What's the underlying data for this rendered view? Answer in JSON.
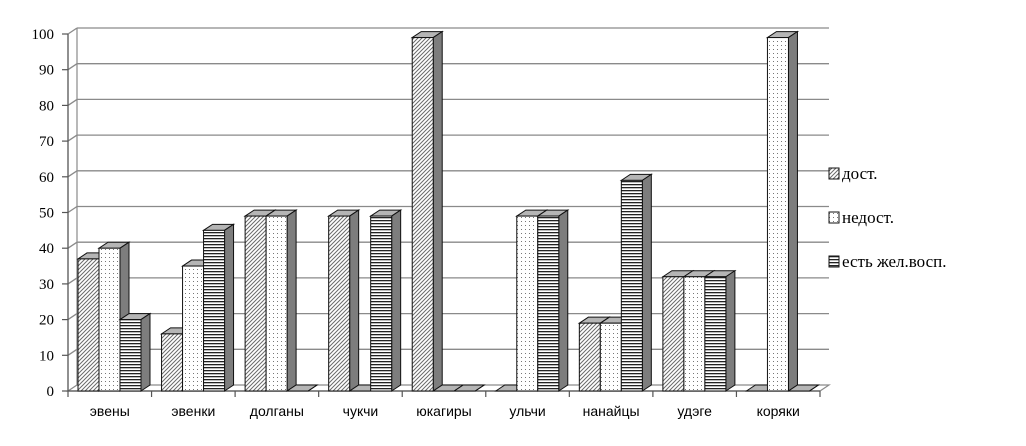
{
  "chart_data": {
    "type": "bar",
    "categories": [
      "эвены",
      "эвенки",
      "долганы",
      "чукчи",
      "юкагиры",
      "ульчи",
      "нанайцы",
      "удэге",
      "коряки"
    ],
    "series": [
      {
        "name": "дост.",
        "values": [
          37,
          16,
          49,
          49,
          99,
          0,
          19,
          32,
          0
        ],
        "pattern": "diagonal-hatch"
      },
      {
        "name": "недост.",
        "values": [
          40,
          35,
          49,
          0,
          0,
          49,
          19,
          32,
          99
        ],
        "pattern": "dots"
      },
      {
        "name": "есть жел.восп.",
        "values": [
          20,
          45,
          0,
          49,
          0,
          49,
          59,
          32,
          0
        ],
        "pattern": "horizontal-stripes"
      }
    ],
    "yticks": [
      "0",
      "10",
      "20",
      "30",
      "40",
      "50",
      "60",
      "70",
      "80",
      "90",
      "100"
    ],
    "ylim": [
      0,
      100
    ],
    "grid": true,
    "legend": "right",
    "style": "3d-clustered-column"
  }
}
